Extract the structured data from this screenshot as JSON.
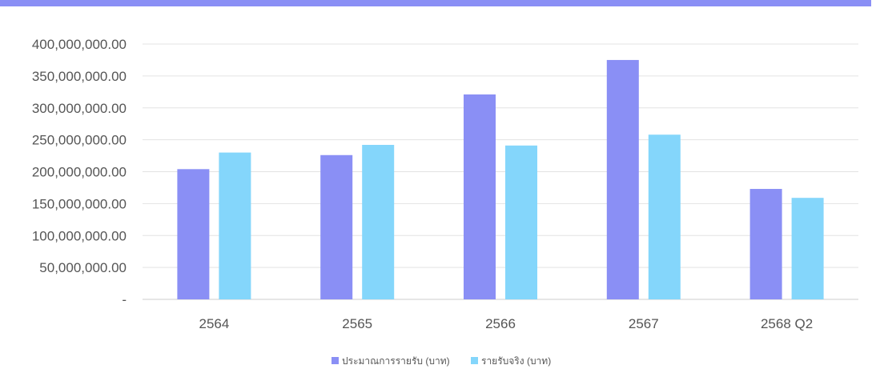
{
  "colors": {
    "top_band": "#8a8ff5",
    "grid": "#e3e3e3",
    "axis": "#cccccc"
  },
  "chart_data": {
    "type": "bar",
    "categories": [
      "2564",
      "2565",
      "2566",
      "2567",
      "2568 Q2"
    ],
    "series": [
      {
        "name": "ประมาณการรายรับ (บาท)",
        "color": "#8a8ff5",
        "values": [
          204000000,
          226000000,
          321000000,
          375000000,
          173000000
        ]
      },
      {
        "name": "รายรับจริง (บาท)",
        "color": "#84d6fb",
        "values": [
          230000000,
          242000000,
          241000000,
          258000000,
          159000000
        ]
      }
    ],
    "ylim": [
      0,
      400000000
    ],
    "y_ticks": [
      0,
      50000000,
      100000000,
      150000000,
      200000000,
      250000000,
      300000000,
      350000000,
      400000000
    ],
    "y_tick_labels": [
      "-",
      "50,000,000.00",
      "100,000,000.00",
      "150,000,000.00",
      "200,000,000.00",
      "250,000,000.00",
      "300,000,000.00",
      "350,000,000.00",
      "400,000,000.00"
    ],
    "grid": true,
    "legend_position": "bottom"
  }
}
